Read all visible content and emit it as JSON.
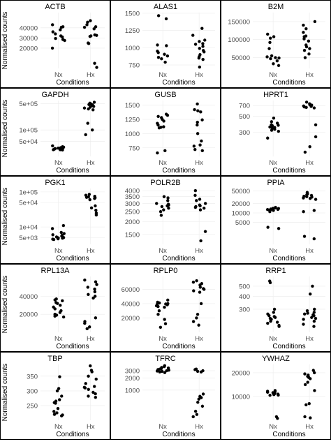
{
  "figure": {
    "y_axis_label": "Normalised counts",
    "x_axis_label": "Conditions"
  },
  "chart_data": [
    {
      "type": "scatter",
      "title": "ACTB",
      "categories": [
        "Nx",
        "Hx"
      ],
      "ylim": [
        0,
        55000
      ],
      "ticks": [
        20000,
        30000,
        40000
      ],
      "tick_labels": [
        "20000",
        "30000",
        "40000"
      ],
      "ylabel": "Normalised counts",
      "xlabel": "Conditions",
      "series": [
        {
          "x": "Nx",
          "values": [
            43000,
            41000,
            40500,
            38000,
            36000,
            34000,
            32000,
            31000,
            29500,
            28500,
            27500,
            20000
          ]
        },
        {
          "x": "Hx",
          "values": [
            47000,
            45500,
            43000,
            41000,
            40500,
            39000,
            33000,
            32500,
            32000,
            31500,
            25000,
            24500,
            5000,
            1000
          ]
        }
      ]
    },
    {
      "type": "scatter",
      "title": "ALAS1",
      "categories": [
        "Nx",
        "Hx"
      ],
      "ylim": [
        700,
        1510
      ],
      "ticks": [
        750,
        1000,
        1250,
        1500
      ],
      "tick_labels": [
        "750",
        "1000",
        "1250",
        "1500"
      ],
      "ylabel": "",
      "xlabel": "",
      "series": [
        {
          "x": "Nx",
          "values": [
            1465,
            1420,
            1040,
            1030,
            950,
            930,
            905,
            880,
            860,
            840,
            790
          ]
        },
        {
          "x": "Hx",
          "values": [
            1280,
            1180,
            1110,
            1090,
            1060,
            1050,
            1020,
            990,
            960,
            940,
            900,
            870,
            850,
            830,
            720
          ]
        }
      ]
    },
    {
      "type": "scatter",
      "title": "B2M",
      "categories": [
        "Nx",
        "Hx"
      ],
      "ylim": [
        20000,
        175000
      ],
      "ticks": [
        50000,
        100000,
        150000
      ],
      "tick_labels": [
        "50000",
        "100000",
        "150000"
      ],
      "ylabel": "",
      "xlabel": "",
      "series": [
        {
          "x": "Nx",
          "values": [
            115000,
            108000,
            104000,
            92000,
            75000,
            55000,
            52000,
            50000,
            49000,
            47000,
            41000,
            33000,
            28000
          ]
        },
        {
          "x": "Hx",
          "values": [
            150000,
            140000,
            130000,
            120000,
            110000,
            108000,
            102000,
            96000,
            85000,
            80000,
            75000,
            70000,
            60000,
            50000
          ]
        }
      ]
    },
    {
      "type": "scatter",
      "title": "GAPDH",
      "categories": [
        "Nx",
        "Hx"
      ],
      "ylim": [
        20000,
        600000
      ],
      "yscale": "log",
      "ticks": [
        50000,
        100000,
        500000
      ],
      "tick_labels": [
        "5e+04",
        "1e+05",
        "5e+05"
      ],
      "ylabel": "Normalised counts",
      "xlabel": "",
      "series": [
        {
          "x": "Nx",
          "values": [
            38000,
            36000,
            35000,
            34000,
            33000,
            33000,
            32000,
            32000,
            31000,
            30000,
            30000,
            29500
          ]
        },
        {
          "x": "Hx",
          "values": [
            540000,
            510000,
            490000,
            470000,
            460000,
            440000,
            420000,
            400000,
            380000,
            360000,
            340000,
            150000,
            100000,
            75000
          ]
        }
      ]
    },
    {
      "type": "scatter",
      "title": "GUSB",
      "categories": [
        "Nx",
        "Hx"
      ],
      "ylim": [
        600,
        1580
      ],
      "ticks": [
        750,
        1000,
        1250,
        1500
      ],
      "tick_labels": [
        "750",
        "1000",
        "1250",
        "1500"
      ],
      "ylabel": "",
      "xlabel": "",
      "series": [
        {
          "x": "Nx",
          "values": [
            1340,
            1320,
            1300,
            1280,
            1250,
            1220,
            1180,
            1150,
            1120,
            1110,
            1100,
            700,
            660
          ]
        },
        {
          "x": "Hx",
          "values": [
            1520,
            1420,
            1400,
            1380,
            1240,
            1200,
            1150,
            1000,
            870,
            800,
            780,
            720,
            700
          ]
        }
      ]
    },
    {
      "type": "scatter",
      "title": "HPRT1",
      "categories": [
        "Nx",
        "Hx"
      ],
      "ylim": [
        140,
        820
      ],
      "yscale": "log",
      "ticks": [
        300,
        500,
        700
      ],
      "tick_labels": [
        "300",
        "500",
        "700"
      ],
      "ylabel": "",
      "xlabel": "",
      "series": [
        {
          "x": "Nx",
          "values": [
            470,
            420,
            400,
            380,
            375,
            370,
            360,
            355,
            350,
            340,
            330,
            320,
            310,
            250
          ]
        },
        {
          "x": "Hx",
          "values": [
            780,
            740,
            720,
            710,
            700,
            690,
            680,
            670,
            660,
            650,
            380,
            260,
            190,
            160
          ]
        }
      ]
    },
    {
      "type": "scatter",
      "title": "PGK1",
      "categories": [
        "Nx",
        "Hx"
      ],
      "ylim": [
        3200,
        125000
      ],
      "yscale": "log",
      "ticks": [
        5000,
        10000,
        50000,
        100000
      ],
      "tick_labels": [
        "5e+03",
        "1e+04",
        "5e+04",
        "1e+05"
      ],
      "ylabel": "Normalised counts",
      "xlabel": "",
      "series": [
        {
          "x": "Nx",
          "values": [
            11000,
            9000,
            7000,
            6500,
            6000,
            5800,
            5500,
            5200,
            5000,
            4900,
            4800,
            4600,
            4500,
            4400
          ]
        },
        {
          "x": "Hx",
          "values": [
            85000,
            80000,
            75000,
            72000,
            70000,
            68000,
            65000,
            60000,
            40000,
            35000,
            30000,
            25000,
            22000
          ]
        }
      ]
    },
    {
      "type": "scatter",
      "title": "POLR2B",
      "categories": [
        "Nx",
        "Hx"
      ],
      "ylim": [
        1200,
        4200
      ],
      "yscale": "log",
      "ticks": [
        1500,
        2000,
        2500,
        3000,
        3500,
        4000
      ],
      "tick_labels": [
        "1500",
        "2000",
        "2500",
        "3000",
        "3500",
        "4000"
      ],
      "ylabel": "",
      "xlabel": "",
      "series": [
        {
          "x": "Nx",
          "values": [
            3500,
            3400,
            3200,
            3000,
            2950,
            2900,
            2850,
            2800,
            2700,
            2600,
            2500,
            2300
          ]
        },
        {
          "x": "Hx",
          "values": [
            4000,
            3600,
            3300,
            3200,
            3000,
            2900,
            2850,
            2800,
            2750,
            2700,
            2600,
            1600,
            1300
          ]
        }
      ]
    },
    {
      "type": "scatter",
      "title": "PPIA",
      "categories": [
        "Nx",
        "Hx"
      ],
      "ylim": [
        1000,
        60000
      ],
      "yscale": "log",
      "ticks": [
        5000,
        10000,
        20000,
        50000
      ],
      "tick_labels": [
        "5000",
        "10000",
        "20000",
        "50000"
      ],
      "ylabel": "",
      "xlabel": "",
      "series": [
        {
          "x": "Nx",
          "values": [
            15000,
            14500,
            14000,
            13800,
            13500,
            13300,
            13000,
            12800,
            12600,
            12400,
            12000,
            11000,
            3500,
            3200
          ]
        },
        {
          "x": "Hx",
          "values": [
            45000,
            40000,
            38000,
            36000,
            34000,
            33000,
            32000,
            30000,
            29000,
            27000,
            12000,
            11000,
            1800,
            1500
          ]
        }
      ]
    },
    {
      "type": "scatter",
      "title": "RPL13A",
      "categories": [
        "Nx",
        "Hx"
      ],
      "ylim": [
        0,
        62000
      ],
      "ticks": [
        20000,
        40000
      ],
      "tick_labels": [
        "20000",
        "40000"
      ],
      "ylabel": "Normalised counts",
      "xlabel": "",
      "series": [
        {
          "x": "Nx",
          "values": [
            37000,
            36000,
            35000,
            33000,
            32000,
            30000,
            28000,
            26000,
            24000,
            22000,
            20000,
            19000,
            18000,
            17000
          ]
        },
        {
          "x": "Hx",
          "values": [
            58000,
            56000,
            53000,
            50000,
            48000,
            45000,
            42000,
            40000,
            38000,
            16000,
            12000,
            10000,
            6000,
            4000
          ]
        }
      ]
    },
    {
      "type": "scatter",
      "title": "RPLP0",
      "categories": [
        "Nx",
        "Hx"
      ],
      "ylim": [
        0,
        78000
      ],
      "ticks": [
        20000,
        40000,
        60000
      ],
      "tick_labels": [
        "20000",
        "40000",
        "60000"
      ],
      "ylabel": "",
      "xlabel": "",
      "series": [
        {
          "x": "Nx",
          "values": [
            45000,
            42000,
            41000,
            40000,
            39500,
            39000,
            38500,
            37000,
            36000,
            35000,
            30000,
            25000,
            18000,
            12000,
            7000
          ]
        },
        {
          "x": "Hx",
          "values": [
            72000,
            70000,
            68000,
            66000,
            63000,
            61000,
            60000,
            58000,
            56000,
            40000,
            25000,
            20000,
            15000,
            10000
          ]
        }
      ]
    },
    {
      "type": "scatter",
      "title": "RRP1",
      "categories": [
        "Nx",
        "Hx"
      ],
      "ylim": [
        180,
        620
      ],
      "yscale": "log",
      "ticks": [
        300,
        400,
        500
      ],
      "tick_labels": [
        "300",
        "400",
        "500"
      ],
      "ylabel": "",
      "xlabel": "",
      "series": [
        {
          "x": "Nx",
          "values": [
            560,
            540,
            300,
            280,
            270,
            260,
            255,
            250,
            245,
            240,
            230,
            225,
            220,
            210,
            205
          ]
        },
        {
          "x": "Hx",
          "values": [
            500,
            420,
            300,
            290,
            280,
            275,
            270,
            265,
            260,
            250,
            245,
            240,
            230,
            215,
            205
          ]
        }
      ]
    },
    {
      "type": "scatter",
      "title": "TBP",
      "categories": [
        "Nx",
        "Hx"
      ],
      "ylim": [
        200,
        390
      ],
      "ticks": [
        250,
        300,
        350
      ],
      "tick_labels": [
        "250",
        "300",
        "350"
      ],
      "ylabel": "Normalised counts",
      "xlabel": "",
      "series": [
        {
          "x": "Nx",
          "values": [
            348,
            308,
            300,
            282,
            270,
            265,
            260,
            258,
            240,
            230,
            225,
            220,
            218,
            215
          ]
        },
        {
          "x": "Hx",
          "values": [
            385,
            370,
            365,
            350,
            340,
            325,
            315,
            312,
            310,
            305,
            295,
            290,
            282,
            278
          ]
        }
      ]
    },
    {
      "type": "scatter",
      "title": "TFRC",
      "categories": [
        "Nx",
        "Hx"
      ],
      "ylim": [
        180,
        4300
      ],
      "yscale": "log",
      "ticks": [
        1000,
        2000,
        3000
      ],
      "tick_labels": [
        "1000",
        "2000",
        "3000"
      ],
      "ylabel": "",
      "xlabel": "",
      "series": [
        {
          "x": "Nx",
          "values": [
            4000,
            3800,
            3600,
            3500,
            3400,
            3300,
            3200,
            3100,
            3000,
            2950,
            2900,
            2800,
            2700
          ]
        },
        {
          "x": "Hx",
          "values": [
            3300,
            3200,
            3000,
            2900,
            2800,
            800,
            700,
            650,
            600,
            500,
            400,
            300,
            250,
            220
          ]
        }
      ]
    },
    {
      "type": "scatter",
      "title": "YWHAZ",
      "categories": [
        "Nx",
        "Hx"
      ],
      "ylim": [
        0,
        23500
      ],
      "ticks": [
        10000,
        20000
      ],
      "tick_labels": [
        "10000",
        "20000"
      ],
      "ylabel": "",
      "xlabel": "",
      "series": [
        {
          "x": "Nx",
          "values": [
            12500,
            12200,
            12000,
            11800,
            11600,
            11400,
            11200,
            11000,
            10800,
            10600,
            10500,
            1500,
            800
          ]
        },
        {
          "x": "Hx",
          "values": [
            21000,
            20000,
            19500,
            19000,
            18500,
            18000,
            17500,
            16000,
            15000,
            12500,
            7000,
            6500,
            1500,
            1000
          ]
        }
      ]
    }
  ]
}
